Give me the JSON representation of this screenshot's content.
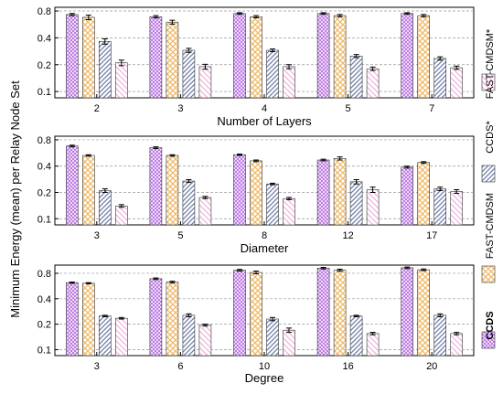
{
  "figure": {
    "ylabel": "Minimum Energy (mean) per Relay Node Set"
  },
  "legend": [
    {
      "name": "CCDS",
      "color": "#b56be0",
      "pattern": "crosshatch-fine",
      "bold": true
    },
    {
      "name": "FAST-CMDSM",
      "color": "#f0b865",
      "pattern": "crosshatch-wide"
    },
    {
      "name": "CCDS*",
      "color": "#6f7fa8",
      "pattern": "diagonal"
    },
    {
      "name": "FAST-CMDSM*",
      "color": "#f0a8d8",
      "pattern": "diagonal-back"
    }
  ],
  "chart_data": [
    {
      "type": "bar",
      "xlabel": "Number of Layers",
      "ylabel": "",
      "yscale": "log",
      "ylim": [
        0.085,
        0.88
      ],
      "yticks": [
        "0.1",
        "0.2",
        "0.4",
        "0.8"
      ],
      "categories": [
        "2",
        "3",
        "4",
        "5",
        "7"
      ],
      "series": [
        {
          "name": "CCDS",
          "values": [
            0.73,
            0.69,
            0.75,
            0.75,
            0.75
          ],
          "errors": [
            0.02,
            0.02,
            0.015,
            0.015,
            0.015
          ]
        },
        {
          "name": "FAST-CMDSM",
          "values": [
            0.68,
            0.6,
            0.69,
            0.71,
            0.71
          ],
          "errors": [
            0.04,
            0.03,
            0.02,
            0.02,
            0.02
          ]
        },
        {
          "name": "CCDS*",
          "values": [
            0.365,
            0.29,
            0.29,
            0.25,
            0.235
          ],
          "errors": [
            0.025,
            0.015,
            0.01,
            0.01,
            0.01
          ]
        },
        {
          "name": "FAST-CMDSM*",
          "values": [
            0.21,
            0.19,
            0.19,
            0.18,
            0.185
          ],
          "errors": [
            0.015,
            0.012,
            0.01,
            0.008,
            0.008
          ]
        }
      ]
    },
    {
      "type": "bar",
      "xlabel": "Diameter",
      "ylabel": "",
      "yscale": "log",
      "ylim": [
        0.085,
        0.88
      ],
      "yticks": [
        "0.1",
        "0.2",
        "0.4",
        "0.8"
      ],
      "categories": [
        "3",
        "5",
        "8",
        "12",
        "17"
      ],
      "series": [
        {
          "name": "CCDS",
          "values": [
            0.68,
            0.65,
            0.54,
            0.47,
            0.39
          ],
          "errors": [
            0.015,
            0.015,
            0.01,
            0.01,
            0.01
          ]
        },
        {
          "name": "FAST-CMDSM",
          "values": [
            0.53,
            0.53,
            0.46,
            0.49,
            0.44
          ],
          "errors": [
            0.01,
            0.01,
            0.01,
            0.02,
            0.01
          ]
        },
        {
          "name": "CCDS*",
          "values": [
            0.21,
            0.27,
            0.25,
            0.265,
            0.22
          ],
          "errors": [
            0.01,
            0.01,
            0.005,
            0.015,
            0.01
          ]
        },
        {
          "name": "FAST-CMDSM*",
          "values": [
            0.14,
            0.175,
            0.17,
            0.215,
            0.205
          ],
          "errors": [
            0.005,
            0.005,
            0.005,
            0.015,
            0.01
          ]
        }
      ]
    },
    {
      "type": "bar",
      "xlabel": "Degree",
      "ylabel": "",
      "yscale": "log",
      "ylim": [
        0.085,
        1.0
      ],
      "yticks": [
        "0.1",
        "0.2",
        "0.4",
        "0.8"
      ],
      "categories": [
        "3",
        "6",
        "10",
        "16",
        "20"
      ],
      "series": [
        {
          "name": "CCDS",
          "values": [
            0.62,
            0.69,
            0.87,
            0.92,
            0.93
          ],
          "errors": [
            0.01,
            0.015,
            0.02,
            0.02,
            0.02
          ]
        },
        {
          "name": "FAST-CMDSM",
          "values": [
            0.61,
            0.63,
            0.82,
            0.87,
            0.88
          ],
          "errors": [
            0.01,
            0.015,
            0.03,
            0.025,
            0.02
          ]
        },
        {
          "name": "CCDS*",
          "values": [
            0.25,
            0.255,
            0.23,
            0.25,
            0.255
          ],
          "errors": [
            0.005,
            0.01,
            0.01,
            0.005,
            0.01
          ]
        },
        {
          "name": "FAST-CMDSM*",
          "values": [
            0.235,
            0.195,
            0.17,
            0.155,
            0.155
          ],
          "errors": [
            0.005,
            0.005,
            0.01,
            0.005,
            0.005
          ]
        }
      ]
    }
  ]
}
